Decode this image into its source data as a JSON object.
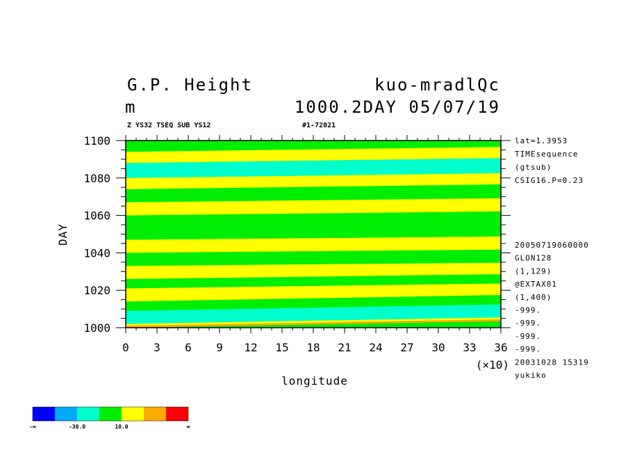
{
  "title": {
    "left_line1": "G.P. Height",
    "left_line2": "m",
    "right_line1": "kuo-mradlQc",
    "right_line2": "1000.2DAY 05/07/19"
  },
  "subtitle": {
    "left": "Z YS32 TSEQ SUB YS12",
    "right": "#1-72021"
  },
  "info_top": [
    "lat=1.3953",
    "TIMEsequence",
    "(gtsub)",
    "CSIG16.P=0.23"
  ],
  "info_bottom": [
    "20050719060000",
    "GLON128",
    "(1,129)",
    "@EXTAX01",
    "(1,400)",
    "-999.",
    "-999.",
    "-999.",
    "-999.",
    "20031028  15319",
    "yukiko"
  ],
  "chart_data": {
    "type": "heatmap",
    "xlabel": "longitude",
    "ylabel": "DAY",
    "x_multiplier_label": "(×10)",
    "xlim": [
      0,
      36
    ],
    "ylim": [
      1000,
      1100
    ],
    "x_ticks": [
      "0",
      "3",
      "6",
      "9",
      "12",
      "15",
      "18",
      "21",
      "24",
      "27",
      "30",
      "33",
      "36"
    ],
    "y_ticks": [
      "1000",
      "1020",
      "1040",
      "1060",
      "1080",
      "1100"
    ],
    "colorbar": {
      "colors": [
        "#0000ff",
        "#00aaff",
        "#00ffcc",
        "#00ee00",
        "#ffff00",
        "#ffaa00",
        "#ff0000"
      ],
      "labels": [
        "-∞",
        "-30.0",
        "10.0",
        "∞"
      ]
    },
    "bands": [
      {
        "y0": 1000,
        "y1": 1002,
        "slope": 0.8,
        "level": 5
      },
      {
        "y0": 1001,
        "y1": 1006,
        "slope": 0.8,
        "level": 4
      },
      {
        "y0": 1002,
        "y1": 1009,
        "slope": 0.8,
        "level": 2
      },
      {
        "y0": 1009,
        "y1": 1014,
        "slope": 0.8,
        "level": 3
      },
      {
        "y0": 1014,
        "y1": 1021,
        "slope": 0.8,
        "level": 4
      },
      {
        "y0": 1021,
        "y1": 1026,
        "slope": 0.6,
        "level": 3
      },
      {
        "y0": 1026,
        "y1": 1033,
        "slope": 0.6,
        "level": 4
      },
      {
        "y0": 1033,
        "y1": 1040,
        "slope": 0.4,
        "level": 3
      },
      {
        "y0": 1040,
        "y1": 1047,
        "slope": 0.4,
        "level": 4
      },
      {
        "y0": 1047,
        "y1": 1052,
        "slope": 0.4,
        "level": 3
      },
      {
        "y0": 1052,
        "y1": 1060,
        "slope": 0.5,
        "level": 3
      },
      {
        "y0": 1060,
        "y1": 1067,
        "slope": 0.5,
        "level": 4
      },
      {
        "y0": 1067,
        "y1": 1074,
        "slope": 0.6,
        "level": 3
      },
      {
        "y0": 1074,
        "y1": 1080,
        "slope": 0.6,
        "level": 4
      },
      {
        "y0": 1080,
        "y1": 1088,
        "slope": 0.6,
        "level": 2
      },
      {
        "y0": 1088,
        "y1": 1094,
        "slope": 0.6,
        "level": 4
      },
      {
        "y0": 1094,
        "y1": 1100,
        "slope": 0.6,
        "level": 3
      }
    ]
  }
}
